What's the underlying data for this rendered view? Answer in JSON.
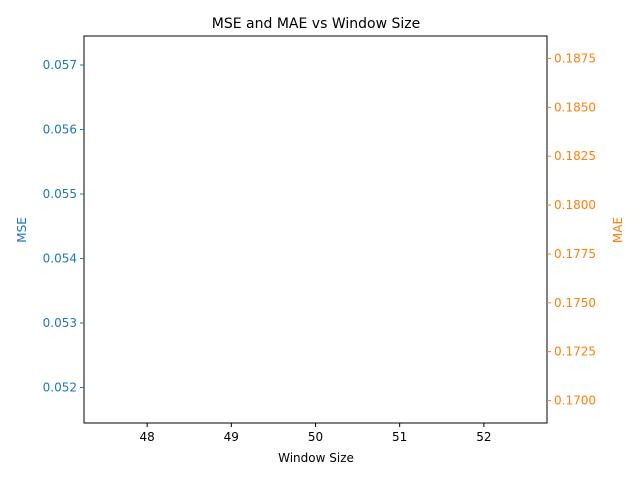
{
  "chart_data": {
    "type": "line",
    "title": "MSE and MAE vs Window Size",
    "xlabel": "Window Size",
    "x_ticks": [
      48,
      49,
      50,
      51,
      52
    ],
    "xlim": [
      47.25,
      52.75
    ],
    "series": [
      {
        "name": "MSE",
        "axis": "left",
        "color": "#1f77b4",
        "x": [],
        "values": []
      },
      {
        "name": "MAE",
        "axis": "right",
        "color": "#ff7f0e",
        "x": [],
        "values": []
      }
    ],
    "y_left": {
      "label": "MSE",
      "color": "#1f77b4",
      "ylim": [
        0.05145,
        0.05745
      ],
      "ticks": [
        0.052,
        0.053,
        0.054,
        0.055,
        0.056,
        0.057
      ]
    },
    "y_right": {
      "label": "MAE",
      "color": "#ff7f0e",
      "ylim": [
        0.16885,
        0.18865
      ],
      "ticks": [
        "0.1700",
        "0.1725",
        "0.1750",
        "0.1775",
        "0.1800",
        "0.1825",
        "0.1850",
        "0.1875"
      ]
    },
    "grid": false
  }
}
